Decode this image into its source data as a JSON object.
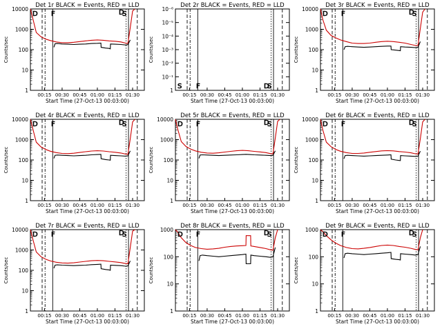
{
  "chart_data": [
    {
      "type": "line",
      "title": "Det 1r  BLACK = Events, RED = LLD",
      "xlabel": "Start Time (27-Oct-13 00:03:00)",
      "ylabel": "Counts/sec",
      "yscale": "log",
      "ylim": [
        1,
        10000
      ],
      "yticks": [
        "1",
        "10",
        "100",
        "1000",
        "10000"
      ],
      "xticks": [
        "00:15",
        "00:30",
        "00:45",
        "01:00",
        "01:15",
        "01:30"
      ],
      "xlim_minutes": [
        3,
        100
      ],
      "markers": [
        "D",
        "F",
        "D",
        "S"
      ],
      "series": [
        {
          "color": "#cc0000",
          "x": [
            3,
            5,
            8,
            12,
            16,
            20,
            25,
            30,
            35,
            40,
            45,
            50,
            55,
            60,
            65,
            70,
            75,
            80,
            84,
            86,
            88,
            90,
            92
          ],
          "y": [
            10000,
            3500,
            700,
            430,
            330,
            280,
            240,
            220,
            220,
            230,
            250,
            270,
            290,
            300,
            290,
            270,
            260,
            240,
            210,
            200,
            1200,
            8000,
            10000
          ]
        },
        {
          "color": "#000000",
          "x": [
            23,
            24,
            26,
            30,
            35,
            40,
            45,
            50,
            55,
            60,
            63,
            63.2,
            67,
            70,
            71,
            71.2,
            75,
            80,
            84,
            86,
            88
          ],
          "y": [
            130,
            195,
            200,
            190,
            185,
            180,
            185,
            190,
            200,
            205,
            210,
            130,
            120,
            115,
            110,
            190,
            185,
            180,
            170,
            175,
            300
          ]
        }
      ]
    },
    {
      "type": "line",
      "title": "Det 2r  BLACK = Events, RED = LLD",
      "xlabel": "Start Time (27-Oct-13 00:03:00)",
      "ylabel": "Counts/sec",
      "yscale": "log",
      "ylim": [
        1,
        1.000001
      ],
      "yticks": [
        "1",
        "10⁻¹",
        "10⁻²",
        "10⁻³",
        "10⁻⁴",
        "10⁻⁵",
        "10⁻⁶"
      ],
      "xticks": [
        "00:15",
        "00:30",
        "00:45",
        "01:00",
        "01:15",
        "01:30"
      ],
      "xlim_minutes": [
        3,
        100
      ],
      "markers": [
        "S",
        "F",
        "D",
        "S"
      ],
      "series": []
    },
    {
      "type": "line",
      "title": "Det 3r  BLACK = Events, RED = LLD",
      "xlabel": "Start Time (27-Oct-13 00:03:00)",
      "ylabel": "Counts/sec",
      "yscale": "log",
      "ylim": [
        1,
        10000
      ],
      "yticks": [
        "1",
        "10",
        "100",
        "1000",
        "10000"
      ],
      "xticks": [
        "00:15",
        "00:30",
        "00:45",
        "01:00",
        "01:15",
        "01:30"
      ],
      "xlim_minutes": [
        3,
        100
      ],
      "markers": [
        "D",
        "F",
        "D",
        "S"
      ],
      "series": [
        {
          "color": "#cc0000",
          "x": [
            3,
            5,
            8,
            12,
            16,
            20,
            25,
            30,
            35,
            40,
            45,
            50,
            55,
            60,
            65,
            70,
            75,
            80,
            84,
            86,
            88,
            90,
            92
          ],
          "y": [
            10000,
            3000,
            900,
            500,
            380,
            300,
            250,
            210,
            200,
            200,
            210,
            230,
            250,
            260,
            250,
            230,
            210,
            180,
            160,
            160,
            1100,
            7000,
            10000
          ]
        },
        {
          "color": "#000000",
          "x": [
            23,
            24,
            26,
            30,
            35,
            40,
            45,
            50,
            55,
            60,
            63,
            63.2,
            67,
            70,
            71,
            71.2,
            75,
            80,
            84,
            86,
            88
          ],
          "y": [
            100,
            140,
            145,
            140,
            135,
            130,
            135,
            140,
            145,
            150,
            150,
            100,
            95,
            90,
            88,
            140,
            135,
            130,
            125,
            130,
            250
          ]
        }
      ]
    },
    {
      "type": "line",
      "title": "Det 4r  BLACK = Events, RED = LLD",
      "xlabel": "Start Time (27-Oct-13 00:03:00)",
      "ylabel": "Counts/sec",
      "yscale": "log",
      "ylim": [
        1,
        10000
      ],
      "yticks": [
        "1",
        "10",
        "100",
        "1000",
        "10000"
      ],
      "xticks": [
        "00:15",
        "00:30",
        "00:45",
        "01:00",
        "01:15",
        "01:30"
      ],
      "xlim_minutes": [
        3,
        100
      ],
      "markers": [
        "D",
        "F",
        "D",
        "S"
      ],
      "series": [
        {
          "color": "#cc0000",
          "x": [
            3,
            5,
            8,
            12,
            16,
            20,
            25,
            30,
            35,
            40,
            45,
            50,
            55,
            60,
            65,
            70,
            75,
            80,
            84,
            86,
            88,
            90,
            92
          ],
          "y": [
            10000,
            3500,
            750,
            440,
            330,
            270,
            230,
            210,
            205,
            215,
            235,
            255,
            275,
            285,
            275,
            255,
            240,
            220,
            195,
            190,
            1100,
            7500,
            10000
          ]
        },
        {
          "color": "#000000",
          "x": [
            23,
            24,
            26,
            30,
            35,
            40,
            45,
            50,
            55,
            60,
            63,
            63.2,
            67,
            70,
            71,
            71.2,
            75,
            80,
            84,
            86,
            88
          ],
          "y": [
            120,
            170,
            175,
            170,
            165,
            160,
            165,
            170,
            180,
            185,
            190,
            115,
            105,
            100,
            98,
            170,
            165,
            160,
            155,
            160,
            280
          ]
        }
      ]
    },
    {
      "type": "line",
      "title": "Det 5r  BLACK = Events, RED = LLD",
      "xlabel": "Start Time (27-Oct-13 00:03:00)",
      "ylabel": "Counts/sec",
      "yscale": "log",
      "ylim": [
        1,
        10000
      ],
      "yticks": [
        "1",
        "10",
        "100",
        "1000",
        "10000"
      ],
      "xticks": [
        "00:15",
        "00:30",
        "00:45",
        "01:00",
        "01:15",
        "01:30"
      ],
      "xlim_minutes": [
        3,
        100
      ],
      "markers": [
        "D",
        "F",
        "D",
        "S"
      ],
      "series": [
        {
          "color": "#cc0000",
          "x": [
            3,
            5,
            8,
            12,
            16,
            20,
            25,
            30,
            35,
            40,
            45,
            50,
            55,
            60,
            65,
            70,
            75,
            80,
            84,
            86,
            88,
            90,
            92
          ],
          "y": [
            10000,
            3200,
            800,
            460,
            340,
            280,
            240,
            220,
            215,
            225,
            245,
            265,
            285,
            295,
            285,
            265,
            250,
            230,
            205,
            200,
            1200,
            8000,
            10000
          ]
        },
        {
          "color": "#000000",
          "x": [
            23,
            24,
            26,
            30,
            35,
            40,
            45,
            50,
            55,
            60,
            63,
            66,
            70,
            75,
            80,
            84,
            86,
            88
          ],
          "y": [
            120,
            175,
            180,
            175,
            170,
            165,
            170,
            175,
            180,
            185,
            190,
            185,
            180,
            175,
            170,
            165,
            170,
            280
          ]
        }
      ]
    },
    {
      "type": "line",
      "title": "Det 6r  BLACK = Events, RED = LLD",
      "xlabel": "Start Time (27-Oct-13 00:03:00)",
      "ylabel": "Counts/sec",
      "yscale": "log",
      "ylim": [
        1,
        10000
      ],
      "yticks": [
        "1",
        "10",
        "100",
        "1000",
        "10000"
      ],
      "xticks": [
        "00:15",
        "00:30",
        "00:45",
        "01:00",
        "01:15",
        "01:30"
      ],
      "xlim_minutes": [
        3,
        100
      ],
      "markers": [
        "D",
        "F",
        "D",
        "S"
      ],
      "series": [
        {
          "color": "#cc0000",
          "x": [
            3,
            5,
            8,
            12,
            16,
            20,
            25,
            30,
            35,
            40,
            45,
            50,
            55,
            60,
            65,
            70,
            75,
            80,
            84,
            86,
            88,
            90,
            92
          ],
          "y": [
            10000,
            3000,
            750,
            450,
            330,
            270,
            230,
            210,
            210,
            220,
            240,
            260,
            280,
            290,
            280,
            260,
            245,
            225,
            200,
            195,
            1100,
            7500,
            10000
          ]
        },
        {
          "color": "#000000",
          "x": [
            23,
            24,
            26,
            30,
            35,
            40,
            45,
            50,
            55,
            60,
            63,
            63.2,
            67,
            70,
            71,
            71.2,
            75,
            80,
            84,
            86,
            88
          ],
          "y": [
            115,
            165,
            170,
            165,
            160,
            155,
            160,
            165,
            170,
            175,
            180,
            110,
            100,
            95,
            93,
            165,
            160,
            155,
            150,
            155,
            270
          ]
        }
      ]
    },
    {
      "type": "line",
      "title": "Det 7r  BLACK = Events, RED = LLD",
      "xlabel": "Start Time (27-Oct-13 00:03:00)",
      "ylabel": "Counts/sec",
      "yscale": "log",
      "ylim": [
        1,
        10000
      ],
      "yticks": [
        "1",
        "10",
        "100",
        "1000",
        "10000"
      ],
      "xticks": [
        "00:15",
        "00:30",
        "00:45",
        "01:00",
        "01:15",
        "01:30"
      ],
      "xlim_minutes": [
        3,
        100
      ],
      "markers": [
        "D",
        "F",
        "D",
        "S"
      ],
      "series": [
        {
          "color": "#cc0000",
          "x": [
            3,
            5,
            8,
            12,
            16,
            20,
            25,
            30,
            35,
            40,
            45,
            50,
            55,
            60,
            65,
            70,
            75,
            80,
            84,
            86,
            88,
            90,
            92
          ],
          "y": [
            10000,
            3500,
            800,
            470,
            350,
            290,
            250,
            230,
            225,
            235,
            255,
            275,
            295,
            305,
            295,
            275,
            260,
            240,
            215,
            210,
            1300,
            8500,
            10000
          ]
        },
        {
          "color": "#000000",
          "x": [
            23,
            24,
            26,
            30,
            35,
            40,
            45,
            50,
            55,
            60,
            63,
            63.2,
            67,
            70,
            71,
            71.2,
            75,
            80,
            84,
            86,
            88
          ],
          "y": [
            125,
            180,
            185,
            180,
            175,
            170,
            175,
            180,
            190,
            195,
            200,
            120,
            110,
            105,
            100,
            180,
            175,
            170,
            160,
            165,
            290
          ]
        }
      ]
    },
    {
      "type": "line",
      "title": "Det 8r  BLACK = Events, RED = LLD",
      "xlabel": "Start Time (27-Oct-13 00:03:00)",
      "ylabel": "Counts/sec",
      "yscale": "log",
      "ylim": [
        1,
        1000
      ],
      "yticks": [
        "1",
        "10",
        "100",
        "1000"
      ],
      "xticks": [
        "00:15",
        "00:30",
        "00:45",
        "01:00",
        "01:15",
        "01:30"
      ],
      "xlim_minutes": [
        3,
        100
      ],
      "markers": [
        "D",
        "F",
        "D",
        "S"
      ],
      "series": [
        {
          "color": "#cc0000",
          "x": [
            3,
            5,
            8,
            12,
            16,
            20,
            25,
            30,
            35,
            40,
            45,
            50,
            55,
            60,
            63,
            63.2,
            67,
            67.2,
            70,
            75,
            80,
            84,
            86,
            88,
            90
          ],
          "y": [
            1000,
            800,
            500,
            330,
            260,
            220,
            200,
            190,
            195,
            205,
            225,
            240,
            250,
            255,
            260,
            600,
            600,
            250,
            240,
            220,
            200,
            180,
            175,
            500,
            1000
          ]
        },
        {
          "color": "#000000",
          "x": [
            23,
            24,
            26,
            30,
            35,
            40,
            45,
            50,
            55,
            60,
            63,
            63.2,
            67,
            67.2,
            70,
            75,
            80,
            84,
            86,
            88
          ],
          "y": [
            70,
            110,
            115,
            110,
            105,
            100,
            105,
            110,
            115,
            120,
            125,
            55,
            55,
            115,
            110,
            105,
            100,
            95,
            100,
            220
          ]
        }
      ]
    },
    {
      "type": "line",
      "title": "Det 9r  BLACK = Events, RED = LLD",
      "xlabel": "Start Time (27-Oct-13 00:03:00)",
      "ylabel": "Counts/sec",
      "yscale": "log",
      "ylim": [
        1,
        1000
      ],
      "yticks": [
        "1",
        "10",
        "100",
        "1000"
      ],
      "xticks": [
        "00:15",
        "00:30",
        "00:45",
        "01:00",
        "01:15",
        "01:30"
      ],
      "xlim_minutes": [
        3,
        100
      ],
      "markers": [
        "D",
        "F",
        "D",
        "S"
      ],
      "series": [
        {
          "color": "#cc0000",
          "x": [
            3,
            5,
            8,
            12,
            16,
            20,
            25,
            30,
            35,
            40,
            45,
            50,
            55,
            60,
            65,
            70,
            75,
            80,
            84,
            86,
            88,
            90
          ],
          "y": [
            1000,
            850,
            600,
            420,
            320,
            260,
            220,
            200,
            195,
            205,
            220,
            240,
            260,
            270,
            260,
            240,
            225,
            205,
            185,
            180,
            500,
            1000
          ]
        },
        {
          "color": "#000000",
          "x": [
            23,
            24,
            26,
            30,
            35,
            40,
            45,
            50,
            55,
            60,
            63,
            63.2,
            67,
            70,
            71,
            71.2,
            75,
            80,
            84,
            86,
            88
          ],
          "y": [
            90,
            130,
            135,
            130,
            125,
            120,
            125,
            130,
            135,
            140,
            145,
            85,
            80,
            78,
            76,
            130,
            125,
            120,
            115,
            120,
            240
          ]
        }
      ]
    }
  ]
}
